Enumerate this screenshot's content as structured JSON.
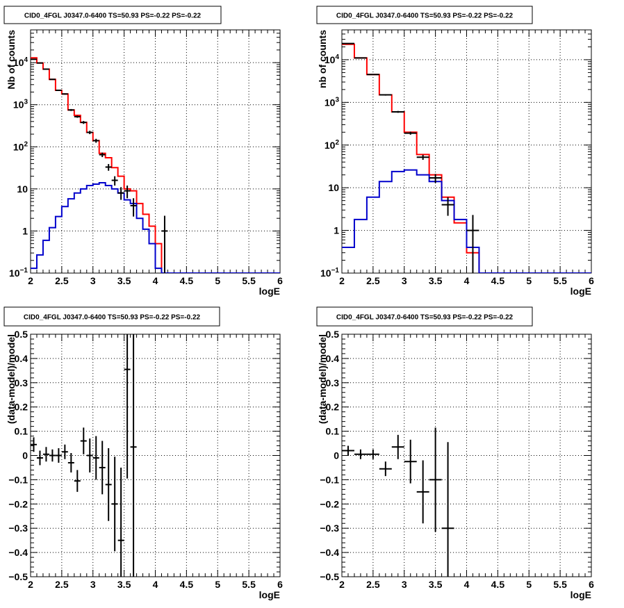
{
  "chart_data": [
    {
      "type": "histogram",
      "title": "CID0_4FGL J0347.0-6400 TS=50.93 PS=-0.22 PS=-0.22",
      "xlabel": "logE",
      "ylabel": "Nb of counts",
      "yscale": "log",
      "xlim": [
        2,
        6
      ],
      "ylim": [
        0.1,
        60000
      ],
      "grid": true,
      "bin_width": 0.1,
      "series": [
        {
          "color": "#ff0000",
          "style": "step",
          "bin_edges_start": 2.0,
          "values": [
            13000,
            9800,
            7000,
            4000,
            2200,
            1800,
            750,
            560,
            380,
            220,
            140,
            70,
            55,
            32,
            20,
            10,
            9,
            4.5,
            2.5,
            1.3,
            0.5,
            0.1
          ]
        },
        {
          "color": "#0000cc",
          "style": "step",
          "bin_edges_start": 2.0,
          "values": [
            0.13,
            0.27,
            0.6,
            1.2,
            2.2,
            3.8,
            5.8,
            8,
            10,
            12,
            13,
            14,
            12,
            10,
            8,
            5.5,
            4.5,
            2,
            1.1,
            0.5,
            0.13,
            0.1,
            0.1,
            0.1,
            0.1,
            0.1,
            0.1,
            0.1,
            0.1,
            0.1,
            0.1,
            0.1,
            0.1,
            0.1,
            0.1,
            0.1,
            0.1,
            0.1,
            0.1,
            0.1
          ]
        },
        {
          "color": "#000000",
          "style": "errorbar",
          "points": [
            {
              "x": 2.05,
              "y": 12000,
              "lo": 11800,
              "hi": 12200
            },
            {
              "x": 2.15,
              "y": 9800,
              "lo": 9600,
              "hi": 10000
            },
            {
              "x": 2.25,
              "y": 7000,
              "lo": 6850,
              "hi": 7150
            },
            {
              "x": 2.35,
              "y": 4000,
              "lo": 3900,
              "hi": 4100
            },
            {
              "x": 2.45,
              "y": 2200,
              "lo": 2130,
              "hi": 2270
            },
            {
              "x": 2.55,
              "y": 1800,
              "lo": 1740,
              "hi": 1860
            },
            {
              "x": 2.65,
              "y": 750,
              "lo": 710,
              "hi": 790
            },
            {
              "x": 2.75,
              "y": 520,
              "lo": 490,
              "hi": 550
            },
            {
              "x": 2.85,
              "y": 380,
              "lo": 350,
              "hi": 410
            },
            {
              "x": 2.95,
              "y": 220,
              "lo": 200,
              "hi": 240
            },
            {
              "x": 3.05,
              "y": 140,
              "lo": 125,
              "hi": 155
            },
            {
              "x": 3.15,
              "y": 65,
              "lo": 57,
              "hi": 73
            },
            {
              "x": 3.25,
              "y": 33,
              "lo": 27,
              "hi": 39
            },
            {
              "x": 3.35,
              "y": 16,
              "lo": 12,
              "hi": 20
            },
            {
              "x": 3.45,
              "y": 8,
              "lo": 5.5,
              "hi": 11
            },
            {
              "x": 3.55,
              "y": 9,
              "lo": 6,
              "hi": 12
            },
            {
              "x": 3.65,
              "y": 4,
              "lo": 2.2,
              "hi": 6
            },
            {
              "x": 4.15,
              "y": 1,
              "lo": 0.1,
              "hi": 2.3
            }
          ]
        }
      ]
    },
    {
      "type": "histogram",
      "title": "CID0_4FGL J0347.0-6400 TS=50.93 PS=-0.22 PS=-0.22",
      "xlabel": "logE",
      "ylabel": "nb of counts",
      "yscale": "log",
      "xlim": [
        2,
        6
      ],
      "ylim": [
        0.1,
        50000
      ],
      "grid": true,
      "bin_width": 0.2,
      "series": [
        {
          "color": "#ff0000",
          "style": "step",
          "values": [
            23000,
            11000,
            4500,
            1500,
            600,
            200,
            60,
            20,
            6,
            1.5,
            0.3,
            0.1
          ]
        },
        {
          "color": "#0000cc",
          "style": "step",
          "values": [
            0.4,
            1.8,
            6,
            14,
            24,
            26,
            20,
            14,
            5,
            1.8,
            0.4,
            0.1,
            0.1,
            0.1,
            0.1,
            0.1,
            0.1,
            0.1,
            0.1,
            0.1
          ]
        },
        {
          "color": "#000000",
          "style": "errorbar",
          "points": [
            {
              "x": 2.1,
              "y": 24000,
              "lo": 23700,
              "hi": 24300
            },
            {
              "x": 2.3,
              "y": 11000,
              "lo": 10800,
              "hi": 11200
            },
            {
              "x": 2.5,
              "y": 4500,
              "lo": 4380,
              "hi": 4620
            },
            {
              "x": 2.7,
              "y": 1500,
              "lo": 1440,
              "hi": 1560
            },
            {
              "x": 2.9,
              "y": 600,
              "lo": 570,
              "hi": 630
            },
            {
              "x": 3.1,
              "y": 190,
              "lo": 175,
              "hi": 205
            },
            {
              "x": 3.3,
              "y": 52,
              "lo": 45,
              "hi": 59
            },
            {
              "x": 3.5,
              "y": 17,
              "lo": 13,
              "hi": 21
            },
            {
              "x": 3.7,
              "y": 4,
              "lo": 2.2,
              "hi": 6
            },
            {
              "x": 4.1,
              "y": 1,
              "lo": 0.1,
              "hi": 2.3
            }
          ]
        }
      ]
    },
    {
      "type": "scatter",
      "title": "CID0_4FGL J0347.0-6400 TS=50.93 PS=-0.22 PS=-0.22",
      "xlabel": "logE",
      "ylabel": "(data-model)/model",
      "xlim": [
        2,
        6
      ],
      "ylim": [
        -0.5,
        0.5
      ],
      "grid": true,
      "series": [
        {
          "color": "#000000",
          "style": "errorbar",
          "xerr": 0.05,
          "points": [
            {
              "x": 2.05,
              "y": 0.045,
              "err": 0.03
            },
            {
              "x": 2.15,
              "y": -0.01,
              "err": 0.03
            },
            {
              "x": 2.25,
              "y": 0.005,
              "err": 0.03
            },
            {
              "x": 2.35,
              "y": 0.0,
              "err": 0.025
            },
            {
              "x": 2.45,
              "y": 0.0,
              "err": 0.03
            },
            {
              "x": 2.55,
              "y": 0.015,
              "err": 0.03
            },
            {
              "x": 2.65,
              "y": -0.03,
              "err": 0.04
            },
            {
              "x": 2.75,
              "y": -0.105,
              "err": 0.045
            },
            {
              "x": 2.85,
              "y": 0.06,
              "err": 0.055
            },
            {
              "x": 2.95,
              "y": 0.0,
              "err": 0.07
            },
            {
              "x": 3.05,
              "y": -0.01,
              "err": 0.09
            },
            {
              "x": 3.15,
              "y": -0.05,
              "err": 0.11
            },
            {
              "x": 3.25,
              "y": -0.12,
              "err": 0.15
            },
            {
              "x": 3.35,
              "y": -0.2,
              "err": 0.195
            },
            {
              "x": 3.45,
              "y": -0.35,
              "err": 0.3
            },
            {
              "x": 3.55,
              "y": 0.355,
              "err": 0.45
            },
            {
              "x": 3.65,
              "y": 0.035,
              "err": 0.55
            }
          ]
        }
      ]
    },
    {
      "type": "scatter",
      "title": "CID0_4FGL J0347.0-6400 TS=50.93 PS=-0.22 PS=-0.22",
      "xlabel": "logE",
      "ylabel": "(data-model)/model",
      "xlim": [
        2,
        6
      ],
      "ylim": [
        -0.5,
        0.5
      ],
      "grid": true,
      "series": [
        {
          "color": "#000000",
          "style": "errorbar",
          "xerr": 0.1,
          "points": [
            {
              "x": 2.1,
              "y": 0.02,
              "err": 0.02
            },
            {
              "x": 2.3,
              "y": 0.005,
              "err": 0.02
            },
            {
              "x": 2.5,
              "y": 0.005,
              "err": 0.02
            },
            {
              "x": 2.7,
              "y": -0.055,
              "err": 0.03
            },
            {
              "x": 2.9,
              "y": 0.035,
              "err": 0.05
            },
            {
              "x": 3.1,
              "y": -0.025,
              "err": 0.09
            },
            {
              "x": 3.3,
              "y": -0.15,
              "err": 0.13
            },
            {
              "x": 3.5,
              "y": -0.1,
              "err": 0.215
            },
            {
              "x": 3.7,
              "y": -0.3,
              "err": 0.355
            }
          ]
        }
      ]
    }
  ]
}
